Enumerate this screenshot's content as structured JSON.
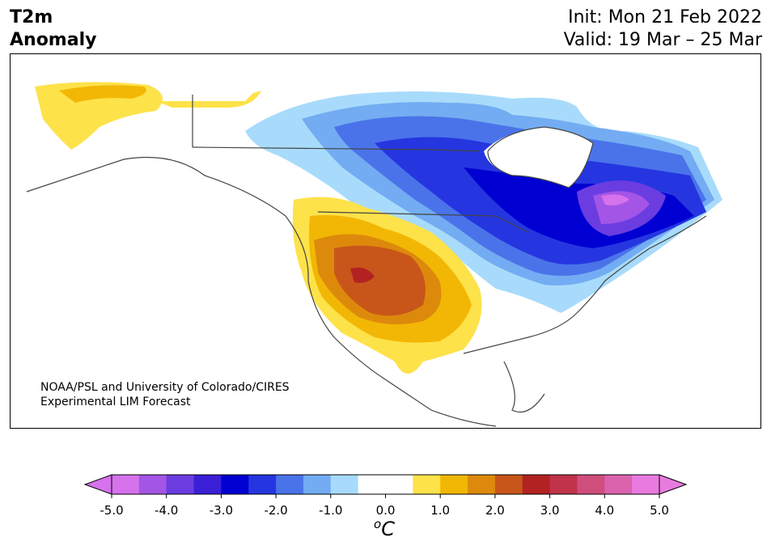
{
  "title": {
    "line1": "T2m",
    "line2": "Anomaly"
  },
  "header_right": {
    "init": "Init: Mon 21 Feb 2022",
    "valid": "Valid: 19 Mar – 25 Mar"
  },
  "credit": {
    "line1": "NOAA/PSL and University of Colorado/CIRES",
    "line2": "Experimental LIM Forecast"
  },
  "colorbar": {
    "ticks": [
      "-5.0",
      "-4.0",
      "-3.0",
      "-2.0",
      "-1.0",
      "0.0",
      "1.0",
      "2.0",
      "3.0",
      "4.0",
      "5.0"
    ],
    "unit_base": "C",
    "unit_sup": "o",
    "colors": [
      "#d572ec",
      "#a355e6",
      "#6b3de0",
      "#3b1fd7",
      "#0000d2",
      "#2536e0",
      "#4a73ea",
      "#73acf2",
      "#a8dbfb",
      "#ffffff",
      "#ffffff",
      "#fde24a",
      "#f2b705",
      "#dd8a0c",
      "#c8561a",
      "#b22222",
      "#c0334a",
      "#cf4e7c",
      "#db63ad",
      "#e97adf"
    ],
    "extend_low": "#d572ec",
    "extend_high": "#e97adf"
  },
  "legend_bins": [
    {
      "range": "< -5.0",
      "color": "#d572ec"
    },
    {
      "range": "-1.0 to -0.5",
      "color": "#a8dbfb"
    },
    {
      "range": "0.5 to 1.0",
      "color": "#fde24a"
    },
    {
      "range": "> 5.0",
      "color": "#e97adf"
    }
  ]
}
